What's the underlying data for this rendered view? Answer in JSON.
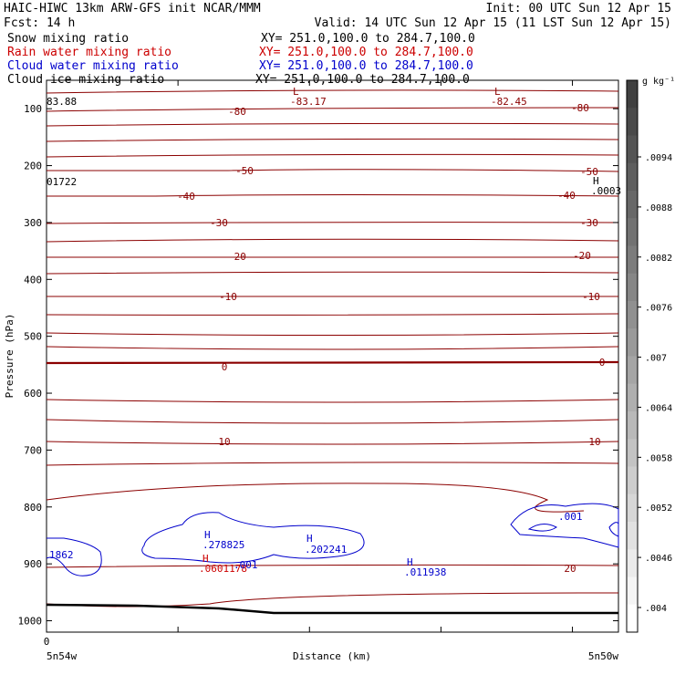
{
  "header": {
    "line1_left": "HAIC-HIWC 13km ARW-GFS init    NCAR/MMM",
    "line1_right": "Init: 00 UTC Sun 12 Apr 15",
    "line2_left": "Fcst:   14 h",
    "line2_right": "Valid: 14 UTC Sun 12 Apr 15 (11 LST Sun 12 Apr 15)"
  },
  "fields": [
    {
      "name": "Snow mixing ratio",
      "xy": "XY= 251.0,100.0 to 284.7,100.0",
      "color": "#000000"
    },
    {
      "name": "Rain water mixing ratio",
      "xy": "XY= 251.0,100.0 to 284.7,100.0",
      "color": "#cc0000"
    },
    {
      "name": "Cloud water mixing ratio",
      "xy": "XY= 251.0,100.0 to 284.7,100.0",
      "color": "#0000cc"
    },
    {
      "name": "Cloud ice mixing ratio",
      "xy": "XY= 251.0,100.0 to 284.7,100.0",
      "color": "#000000"
    }
  ],
  "chart_data": {
    "type": "contour",
    "xlabel": "Distance (km)",
    "ylabel": "Pressure (hPa)",
    "x_tick_labels": [
      "0"
    ],
    "x_end_labels": [
      "5n54w",
      "5n50w"
    ],
    "y_ticks": [
      100,
      200,
      300,
      400,
      500,
      600,
      700,
      800,
      900,
      1000
    ],
    "ylim": [
      1020,
      50
    ],
    "temperature_labels": [
      {
        "value": "-80",
        "p": 120
      },
      {
        "value": "-50",
        "p": 207
      },
      {
        "value": "-40",
        "p": 257
      },
      {
        "value": "-30",
        "p": 310
      },
      {
        "value": "-20",
        "p": 385
      },
      {
        "value": "-10",
        "p": 480
      },
      {
        "value": "0",
        "p": 610
      },
      {
        "value": "10",
        "p": 785
      },
      {
        "value": "20",
        "p": 940
      }
    ],
    "extrema_labels": [
      {
        "text": "L",
        "value": "-83.17",
        "color": "#8b0000"
      },
      {
        "text": "L",
        "value": "-82.45",
        "color": "#8b0000"
      },
      {
        "text": "",
        "value": "83.88",
        "color": "#000000"
      },
      {
        "text": "",
        "value": "01722",
        "color": "#000000"
      },
      {
        "text": "H",
        "value": ".0003",
        "color": "#000000"
      },
      {
        "text": "H",
        "value": ".278825",
        "color": "#0000cc"
      },
      {
        "text": "H",
        "value": ".202241",
        "color": "#0000cc"
      },
      {
        "text": "H",
        "value": ".011938",
        "color": "#0000cc"
      },
      {
        "text": "H",
        "value": ".0601178",
        "color": "#cc0000"
      },
      {
        "text": "",
        "value": ".001",
        "color": "#0000cc"
      },
      {
        "text": "",
        "value": ".001",
        "color": "#0000cc"
      },
      {
        "text": "",
        "value": "1862",
        "color": "#0000cc"
      }
    ],
    "colorbar": {
      "unit": "g kg⁻¹",
      "levels": [
        ".0094",
        ".0088",
        ".0082",
        ".0076",
        ".007",
        ".0064",
        ".0058",
        ".0052",
        ".0046",
        ".004"
      ]
    }
  }
}
